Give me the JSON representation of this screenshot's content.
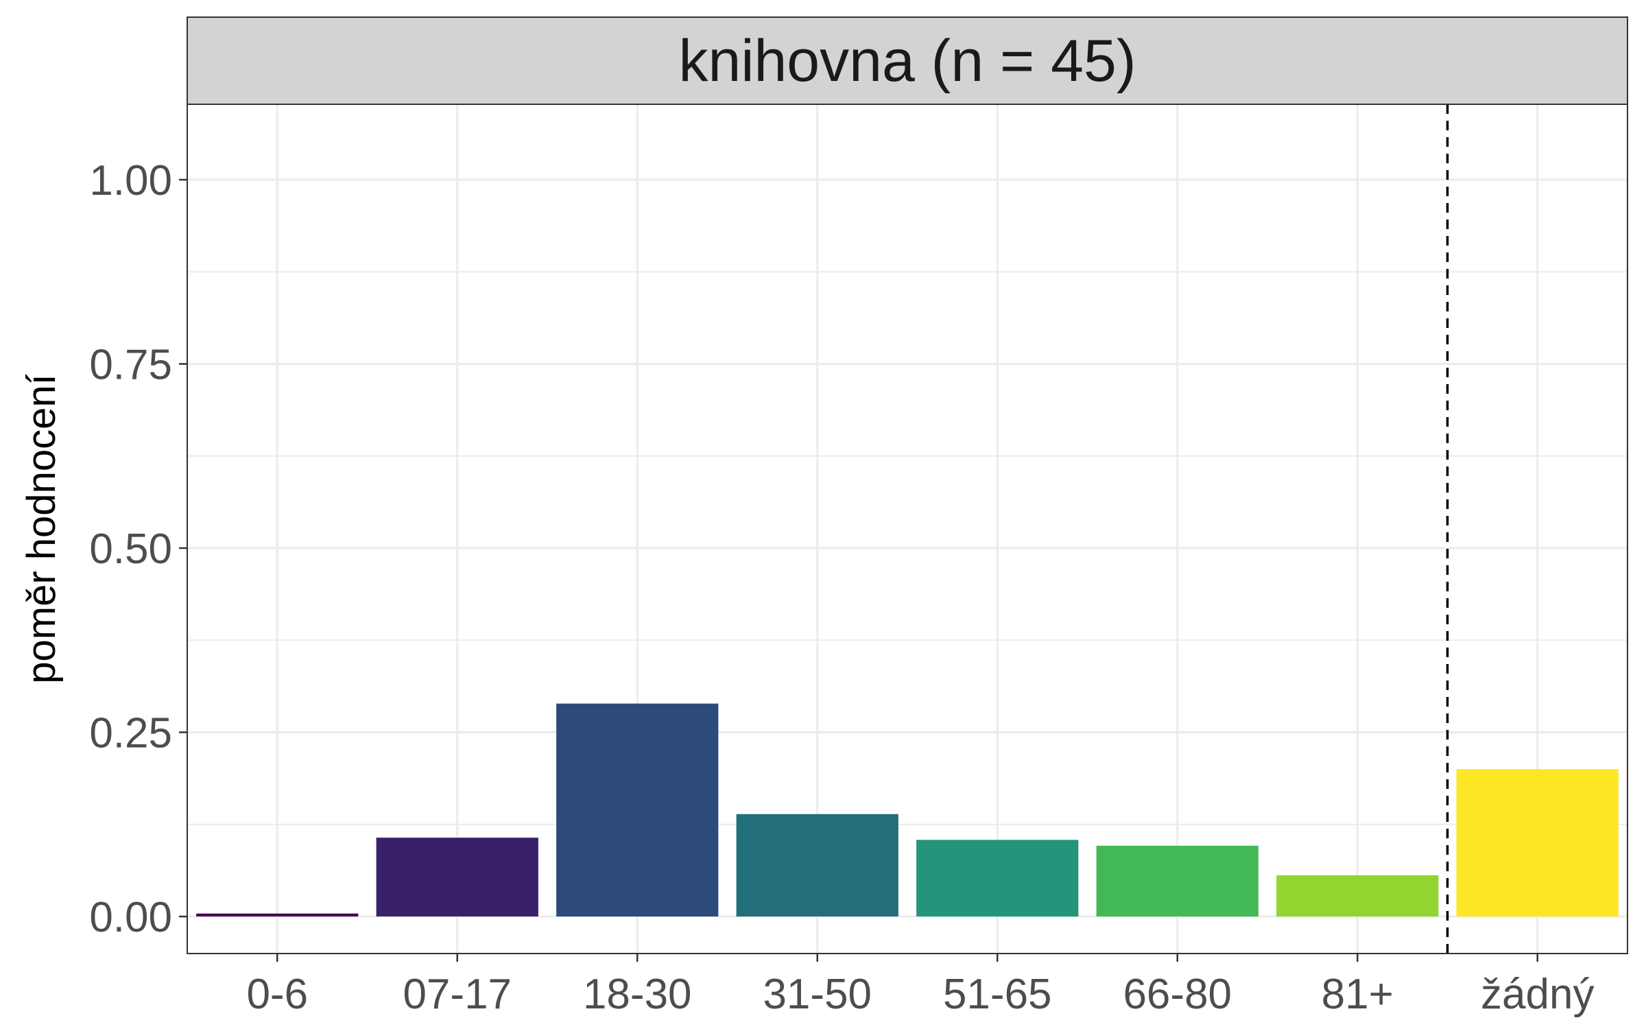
{
  "chart_data": {
    "type": "bar",
    "title": "knihovna (n = 45)",
    "xlabel": "",
    "ylabel": "poměr hodnocení",
    "categories": [
      "0-6",
      "07-17",
      "18-30",
      "31-50",
      "51-65",
      "66-80",
      "81+",
      "žádný"
    ],
    "values": [
      0.004,
      0.107,
      0.289,
      0.139,
      0.104,
      0.096,
      0.056,
      0.2
    ],
    "colors": [
      "#440154",
      "#3A2069",
      "#2C4A7A",
      "#236E7B",
      "#22957A",
      "#43B857",
      "#92D530",
      "#FDE725"
    ],
    "ylim": [
      -0.05,
      1.1
    ],
    "yticks": [
      "0.00",
      "0.25",
      "0.50",
      "0.75",
      "1.00"
    ],
    "ytick_values": [
      0,
      0.25,
      0.5,
      0.75,
      1.0
    ],
    "grid": true,
    "reference_line": {
      "style": "dashed",
      "between": [
        "81+",
        "žádný"
      ]
    },
    "strip_color": "#D3D3D3",
    "legend": "none"
  }
}
